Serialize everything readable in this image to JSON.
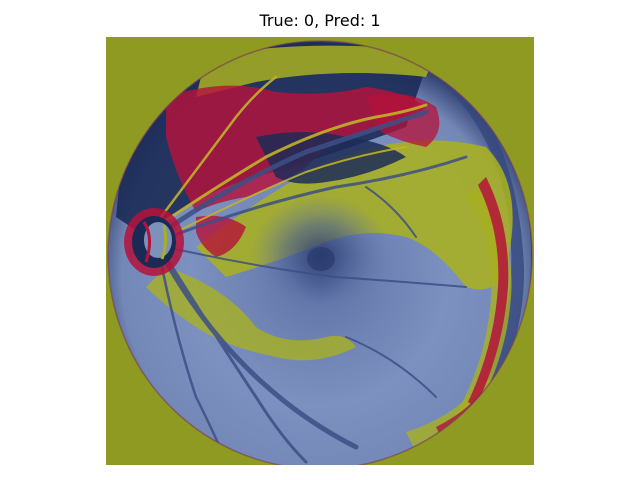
{
  "title": "True: 0, Pred: 1",
  "image": {
    "description_colors": {
      "background": "#8f9a22",
      "retina_base": "#6b80b0",
      "retina_light": "#8a9cc6",
      "retina_dark": "#1b2a55",
      "overlay_yellow": "#a8b020",
      "overlay_red": "#b5123a",
      "vessel": "#3d4f86"
    }
  }
}
